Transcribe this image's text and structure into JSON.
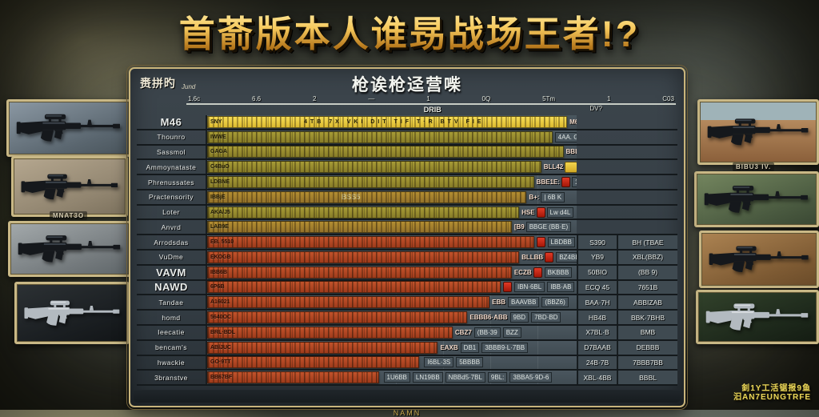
{
  "title": "首萮版本人谁昮战场王者!?",
  "panel": {
    "header_left": "赉拼旳",
    "header_left_script": "Jund",
    "header_title": "枪诶枪迳营喍",
    "axis_ticks": [
      "1.6c",
      "6.6",
      "2",
      "—",
      "1",
      "0Q",
      "5Tm",
      "1",
      "C03"
    ],
    "axis_note_center": "DRIB",
    "axis_note_right": "DV?",
    "footer_mark": "NAMN"
  },
  "left_strip": {
    "label": "MNAT3O"
  },
  "right_strip": {
    "label": "BIBU3 IV."
  },
  "watermark": {
    "line1": "釗1Y工活锯报9鱼",
    "line2": "汩AN7EUNGTRFE"
  },
  "colors": {
    "gold_bar": "#e8c83a",
    "olive_bar": "#9a8d2e",
    "red_bar": "#b5441f",
    "frame_gold": "#c9b57c",
    "panel_bg": "#39424a",
    "badge_red": "#c22415"
  },
  "chart_data": {
    "type": "bar",
    "orientation": "horizontal",
    "title": "枪诶枪迳营喍",
    "note": "garbled AI-generated weapon damage ranking chart",
    "rows": [
      {
        "label": "M46",
        "big": true,
        "tag": "SNY",
        "seg": "4TB  7X  VKI  DIT  TIF  T·R  BTV  FIE",
        "pct": 97,
        "color": "gold",
        "end": "M62∶8M",
        "badge": true,
        "sq": true
      },
      {
        "label": "Thounro",
        "tag": "IWWE",
        "pct": 93,
        "color": "olive",
        "end2": "4AA. GC2BB1"
      },
      {
        "label": "Sassmol",
        "tag": "GAGA",
        "pct": 96,
        "color": "olive",
        "end": "BBL '9BB BF-2",
        "badge": true
      },
      {
        "label": "Ammoynataste",
        "tag": "C4BuO",
        "pct": 90,
        "color": "olive",
        "end": "BLL42",
        "sq": true,
        "end2": "BlABlABD"
      },
      {
        "label": "Phrenussates",
        "tag": "LDBNE",
        "pct": 88,
        "color": "olive",
        "end": "BBE1E:",
        "badge": true,
        "end2": "1.9B"
      },
      {
        "label": "Practensority",
        "tag": "IBBjE",
        "pct": 86,
        "color": "amber",
        "mid": "BSS5",
        "end": "B+:",
        "end2": "| 6B K"
      },
      {
        "label": "Loter",
        "tag": "AKA/J5",
        "pct": 84,
        "color": "olive",
        "end": "HSE",
        "badge": true,
        "end2": "Lw d4L"
      },
      {
        "label": "Anvrd",
        "tag": "LAB9E",
        "pct": 82,
        "color": "amber",
        "end": "[B9",
        "end2": "BBGE (BB·E)"
      },
      {
        "label": "Arrodsdas",
        "tag": "EB. 5510",
        "pct": 88,
        "color": "red",
        "badge": true,
        "cells": [
          "LBDBB"
        ],
        "c1": "S390",
        "c2": "BH (TBAE"
      },
      {
        "label": "VuDme",
        "tag": "EKOGB",
        "pct": 84,
        "color": "red",
        "end": "BLLBB",
        "badge": true,
        "cells": [
          "BZ4BB"
        ],
        "c1": "YB9",
        "c2": "XBL(BBZ)"
      },
      {
        "label": "VAVM",
        "big": true,
        "tag": "IBB6B",
        "pct": 82,
        "color": "red",
        "end": "ECZB",
        "badge": true,
        "cells": [
          "BKBBB"
        ],
        "c1": "50BIO",
        "c2": "(BB 9)"
      },
      {
        "label": "NAWD",
        "big": true,
        "tag": "6P6B",
        "pct": 79,
        "color": "red",
        "badge": true,
        "cells": [
          "IBN·6BL",
          "IBB·AB"
        ],
        "c1": "ECQ 45",
        "c2": "7651B"
      },
      {
        "label": "Tandae",
        "tag": "A16021",
        "pct": 76,
        "color": "red",
        "end": "EBB",
        "cells": [
          "BAAVBB",
          "(BBZ6)"
        ],
        "c1": "BAA·7H",
        "c2": "ABBIZAB"
      },
      {
        "label": "homd",
        "tag": "5640OC",
        "pct": 70,
        "color": "red",
        "end": "EBBB6·ABB",
        "cells": [
          "9BD",
          "7BD·BD"
        ],
        "c1": "HB4B",
        "c2": "BBK·7BHB"
      },
      {
        "label": "Ieecatie",
        "tag": "BRL·BDL",
        "pct": 66,
        "color": "red",
        "end": "CBZ7",
        "cells": [
          "(BB·39",
          "BZZ"
        ],
        "c1": "X7BL·B",
        "c2": "BMB"
      },
      {
        "label": "bencam's",
        "tag": "ABlJUC",
        "pct": 62,
        "color": "red",
        "end": "EAXB",
        "cells": [
          "DB1",
          "3BBB9·L·7BB"
        ],
        "c1": "D7BAAB",
        "c2": "DEBBB"
      },
      {
        "label": "hwackie",
        "tag": "GO·9TT",
        "pct": 57,
        "color": "red",
        "cells": [
          "I6BL·3S",
          "5BBBB"
        ],
        "c1": "24B·7B",
        "c2": "7BBB7BB"
      },
      {
        "label": "3branstve",
        "tag": "BB67BF",
        "pct": 46,
        "color": "red",
        "cells": [
          "1U6BB",
          "LN19BB",
          "NBBd5·7BL",
          "9BL:",
          "3BBA5·9D-6"
        ],
        "c1": "XBL·4BB",
        "c2": "BBBL"
      }
    ]
  }
}
